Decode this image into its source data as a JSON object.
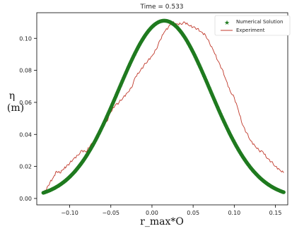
{
  "chart_data": {
    "type": "scatter",
    "title": "Time = 0.533",
    "xlabel": "r_max*O",
    "ylabel_top": "η",
    "ylabel_bottom": "(m)",
    "xlim": [
      -0.14,
      0.165
    ],
    "ylim": [
      -0.004,
      0.116
    ],
    "xticks": [
      -0.1,
      -0.05,
      0.0,
      0.05,
      0.1,
      0.15
    ],
    "xtick_labels": [
      "−0.10",
      "−0.05",
      "0.00",
      "0.05",
      "0.10",
      "0.15"
    ],
    "yticks": [
      0.0,
      0.02,
      0.04,
      0.06,
      0.08,
      0.1
    ],
    "ytick_labels": [
      "0.00",
      "0.02",
      "0.04",
      "0.06",
      "0.08",
      "0.10"
    ],
    "legend_position": "top-right",
    "grid": false,
    "series": [
      {
        "name": "Numerical Solution",
        "kind": "scatter",
        "color": "#1f7a1f",
        "peak_x": 0.015,
        "peak_y": 0.111,
        "width": 0.056,
        "x_range": [
          -0.132,
          0.16
        ],
        "n_points": 360
      },
      {
        "name": "Experiment",
        "kind": "line",
        "color": "#c0392b",
        "x": [
          -0.132,
          -0.128,
          -0.124,
          -0.12,
          -0.116,
          -0.112,
          -0.108,
          -0.104,
          -0.1,
          -0.095,
          -0.09,
          -0.085,
          -0.08,
          -0.075,
          -0.07,
          -0.065,
          -0.06,
          -0.055,
          -0.05,
          -0.045,
          -0.04,
          -0.035,
          -0.03,
          -0.025,
          -0.02,
          -0.015,
          -0.01,
          -0.005,
          0.0,
          0.005,
          0.01,
          0.015,
          0.02,
          0.025,
          0.03,
          0.035,
          0.04,
          0.045,
          0.05,
          0.055,
          0.06,
          0.065,
          0.07,
          0.075,
          0.08,
          0.085,
          0.09,
          0.095,
          0.1,
          0.105,
          0.11,
          0.115,
          0.12,
          0.125,
          0.13,
          0.135,
          0.14,
          0.145,
          0.15,
          0.155,
          0.16
        ],
        "y": [
          0.003,
          0.006,
          0.01,
          0.013,
          0.017,
          0.016,
          0.018,
          0.02,
          0.022,
          0.025,
          0.027,
          0.03,
          0.029,
          0.033,
          0.036,
          0.04,
          0.044,
          0.048,
          0.054,
          0.058,
          0.06,
          0.063,
          0.066,
          0.069,
          0.076,
          0.079,
          0.083,
          0.086,
          0.089,
          0.093,
          0.099,
          0.104,
          0.107,
          0.11,
          0.109,
          0.109,
          0.11,
          0.108,
          0.107,
          0.106,
          0.104,
          0.102,
          0.097,
          0.092,
          0.086,
          0.081,
          0.074,
          0.067,
          0.063,
          0.055,
          0.046,
          0.041,
          0.036,
          0.033,
          0.03,
          0.029,
          0.025,
          0.023,
          0.02,
          0.018,
          0.016
        ]
      }
    ]
  }
}
